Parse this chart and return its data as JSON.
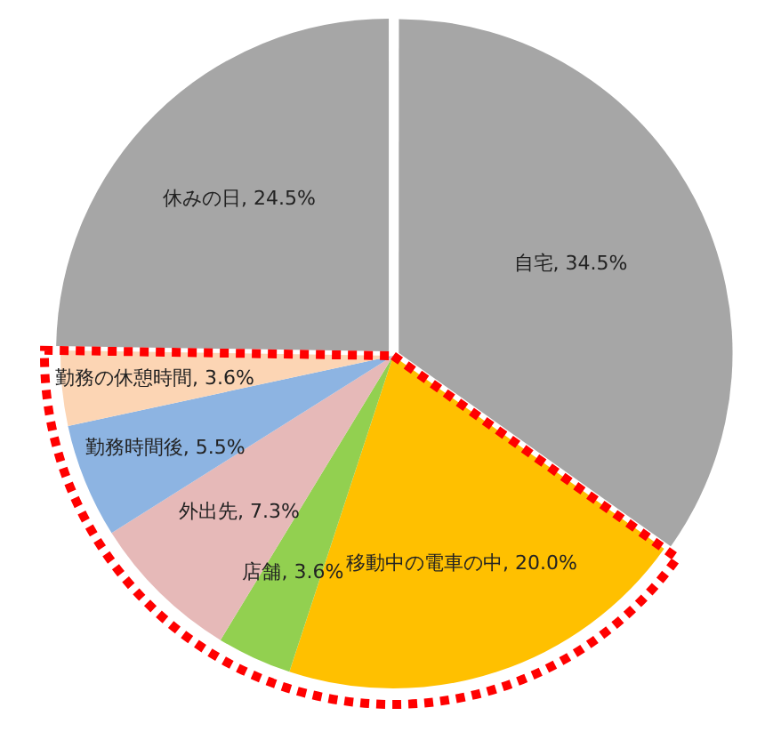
{
  "chart_data": {
    "type": "pie",
    "categories": [
      "自宅",
      "移動中の電車の中",
      "店舗",
      "外出先",
      "勤務時間後",
      "勤務の休憩時間",
      "休みの日"
    ],
    "values": [
      34.5,
      20.0,
      3.6,
      7.3,
      5.5,
      3.6,
      24.5
    ],
    "value_labels": [
      "34.5%",
      "20.0%",
      "3.6%",
      "7.3%",
      "5.5%",
      "3.6%",
      "24.5%"
    ],
    "colors": [
      "#a6a6a6",
      "#ffc000",
      "#92d050",
      "#e6b9b8",
      "#8db4e2",
      "#fcd5b4",
      "#a6a6a6"
    ],
    "legend": false
  }
}
